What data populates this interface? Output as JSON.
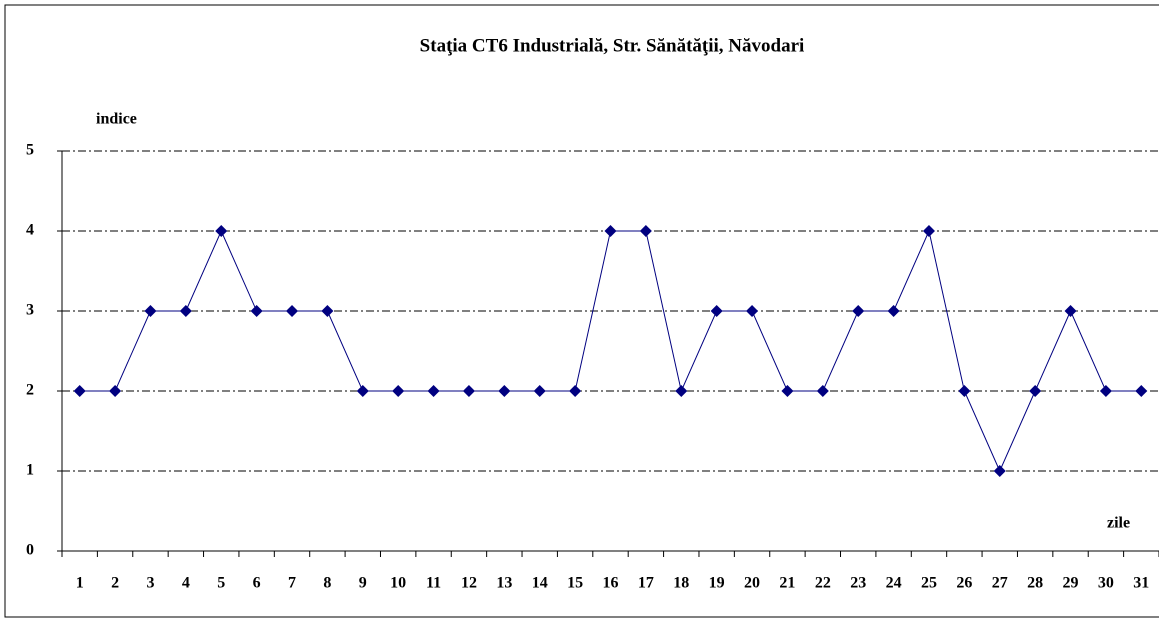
{
  "chart_data": {
    "type": "line",
    "title": "Staţia CT6 Industrială, Str. Sănătăţii, Năvodari",
    "y_label": "indice",
    "x_label": "zile",
    "categories": [
      "1",
      "2",
      "3",
      "4",
      "5",
      "6",
      "7",
      "8",
      "9",
      "10",
      "11",
      "12",
      "13",
      "14",
      "15",
      "16",
      "17",
      "18",
      "19",
      "20",
      "21",
      "22",
      "23",
      "24",
      "25",
      "26",
      "27",
      "28",
      "29",
      "30",
      "31"
    ],
    "series": [
      {
        "color": "#000080",
        "values": [
          2,
          2,
          3,
          3,
          4,
          3,
          3,
          3,
          2,
          2,
          2,
          2,
          2,
          2,
          2,
          4,
          4,
          2,
          3,
          3,
          2,
          2,
          3,
          3,
          4,
          2,
          1,
          2,
          3,
          2,
          2
        ]
      }
    ],
    "ylim": [
      0,
      5
    ],
    "yticks": [
      0,
      1,
      2,
      3,
      4,
      5
    ],
    "grid": true
  }
}
